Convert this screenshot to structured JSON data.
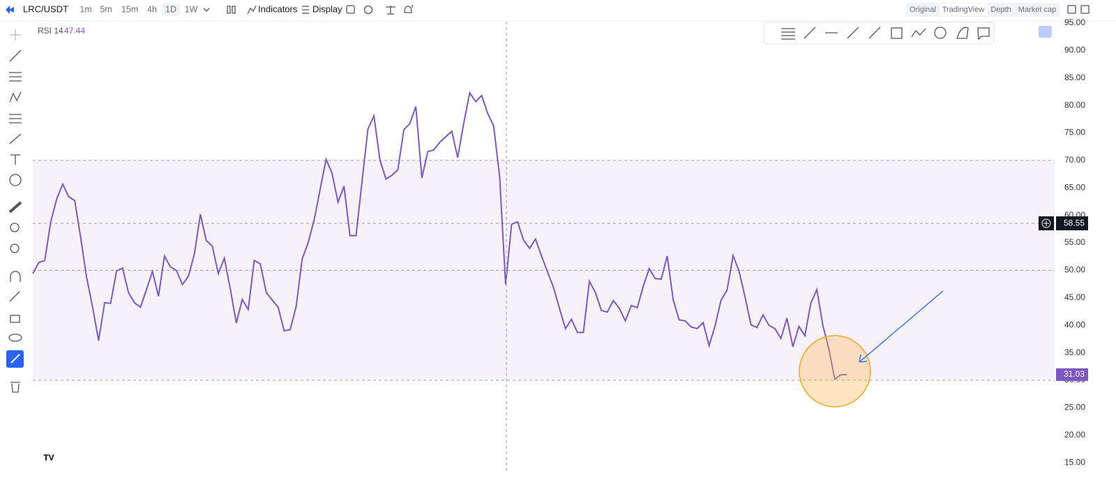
{
  "toolbar": {
    "symbol": "LRC/USDT",
    "intervals": [
      "1m",
      "5m",
      "15m",
      "4h",
      "1D",
      "1W"
    ],
    "active_interval": "1D",
    "indicators": "Indicators",
    "display": "Display",
    "views": [
      "Original",
      "TradingView",
      "Depth",
      "Market cap"
    ],
    "active_view": "TradingView"
  },
  "chart_data": {
    "type": "line",
    "indicator_value": 47.44,
    "series": [
      {
        "name": "RSI 14",
        "color": "#7e57c2",
        "values": [
          49.4,
          51.4,
          51.8,
          58.8,
          63,
          65.7,
          63.4,
          62.7,
          56,
          48.7,
          43.3,
          37.2,
          44.1,
          44,
          49.9,
          50.4,
          45.9,
          44.1,
          43.3,
          46.5,
          49.8,
          45.3,
          52.6,
          50.6,
          50,
          47.4,
          48.9,
          53,
          60.2,
          55.4,
          54.4,
          49.4,
          52.2,
          46.6,
          40.4,
          44.7,
          42.9,
          51.8,
          51.2,
          46,
          44.6,
          43.3,
          39,
          39.2,
          43.4,
          52,
          55,
          59.1,
          64.7,
          70.2,
          67.7,
          62.4,
          65.3,
          56.3,
          56.3,
          66,
          75.7,
          78.1,
          70.1,
          66.6,
          67.3,
          68.3,
          75.6,
          76.7,
          79.8,
          66.8,
          71.6,
          71.9,
          73.3,
          74.3,
          75.3,
          70.5,
          76.7,
          82.3,
          80.7,
          81.8,
          78.6,
          76.3,
          67.1,
          47.4,
          58.4,
          58.8,
          55.5,
          54,
          55.7,
          52.6,
          49.7,
          46.9,
          43.1,
          39.4,
          41.1,
          38.7,
          38.7,
          48,
          46,
          42.7,
          42.4,
          44.5,
          43.1,
          40.8,
          43.6,
          43.2,
          47.1,
          50.3,
          48.5,
          48.4,
          52.6,
          44.6,
          41,
          40.8,
          39.7,
          39.4,
          40.5,
          36.3,
          39.9,
          44.6,
          46.4,
          52.7,
          49.9,
          45.2,
          40.1,
          39.6,
          41.9,
          40,
          39.4,
          37.6,
          41.3,
          36.1,
          39.8,
          38.1,
          44,
          46.5,
          40,
          35.7,
          30.2,
          31,
          31
        ]
      }
    ],
    "ylim": [
      13.5,
      95.25
    ],
    "yticks": [
      {
        "value": 15,
        "label": "15.00"
      },
      {
        "value": 20,
        "label": "20.00"
      },
      {
        "value": 25,
        "label": "25.00"
      },
      {
        "value": 30,
        "label": "30.00"
      },
      {
        "value": 35,
        "label": "35.00"
      },
      {
        "value": 40,
        "label": "40.00"
      },
      {
        "value": 45,
        "label": "45.00"
      },
      {
        "value": 50,
        "label": "50.00"
      },
      {
        "value": 55,
        "label": "55.00"
      },
      {
        "value": 60,
        "label": "60.00"
      },
      {
        "value": 65,
        "label": "65.00"
      },
      {
        "value": 70,
        "label": "70.00"
      },
      {
        "value": 75,
        "label": "75.00"
      },
      {
        "value": 80,
        "label": "80.00"
      },
      {
        "value": 85,
        "label": "85.00"
      },
      {
        "value": 90,
        "label": "90.00"
      },
      {
        "value": 95,
        "label": "95.00"
      }
    ],
    "bands": {
      "upper": 70,
      "middle": 50,
      "lower": 30
    },
    "crosshair_price": 58.55,
    "last_value": 31.03
  }
}
